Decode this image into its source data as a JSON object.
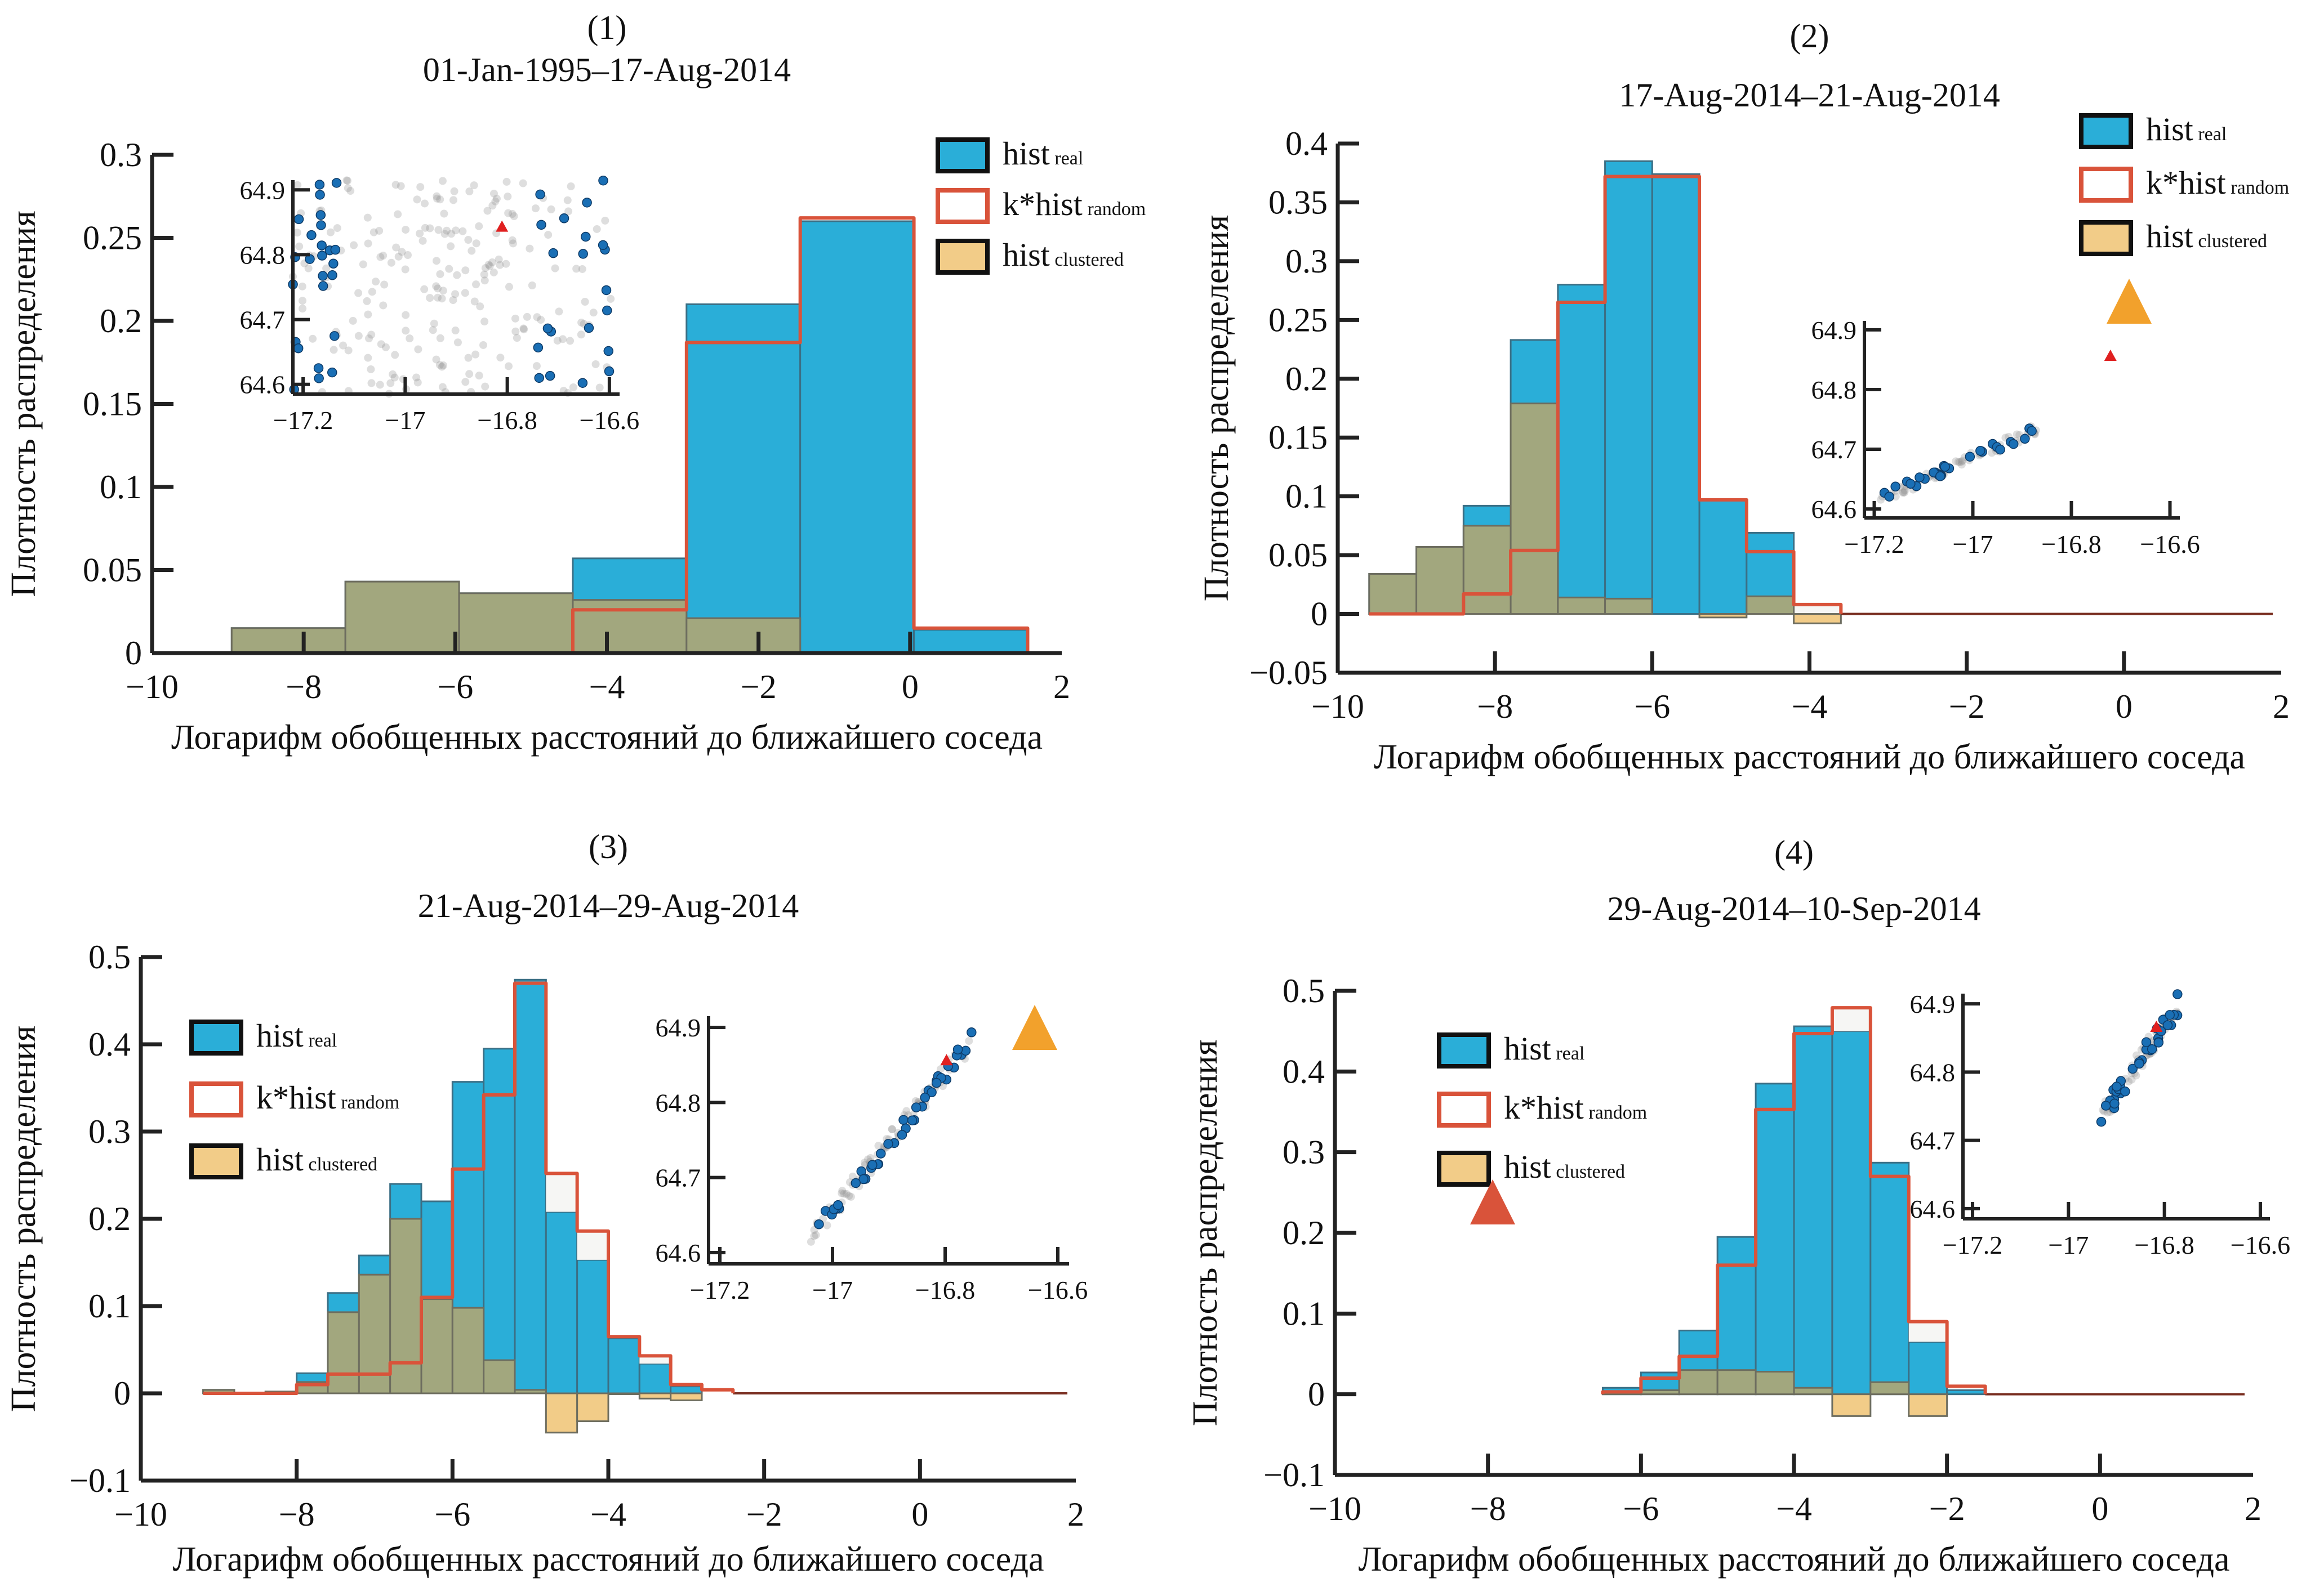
{
  "colors": {
    "real": "#2aaed8",
    "random_line": "#d9533a",
    "clustered": "#f2cc88",
    "overlap": "#a2a77e",
    "axis": "#222222",
    "orange_marker": "#f2a12c",
    "red_marker": "#d9533a",
    "inset_point": "#1a6fb5",
    "inset_event": "#e02020"
  },
  "legend": {
    "real": {
      "main": "hist",
      "sub": "real"
    },
    "random": {
      "main": "k*hist",
      "sub": "random"
    },
    "clustered": {
      "main": "hist",
      "sub": "clustered"
    }
  },
  "chart_data": [
    {
      "type": "bar",
      "panel_label": "(1)",
      "title": "01-Jan-1995–17-Aug-2014",
      "xlabel": "Логарифм обобщенных расстояний до ближайшего соседа",
      "ylabel": "Плотность распределения",
      "xlim": [
        -10,
        2
      ],
      "ylim": [
        0,
        0.3
      ],
      "xticks": [
        -10,
        -8,
        -6,
        -4,
        -2,
        0,
        2
      ],
      "xtick_labels": [
        "−10",
        "−8",
        "−6",
        "−4",
        "−2",
        "0",
        "2"
      ],
      "yticks": [
        0,
        0.05,
        0.1,
        0.15,
        0.2,
        0.25,
        0.3
      ],
      "ytick_labels": [
        "0",
        "0.05",
        "0.1",
        "0.15",
        "0.2",
        "0.25",
        "0.3"
      ],
      "legend_position": "top-right",
      "bin_edges": [
        -8.95,
        -7.45,
        -5.95,
        -4.45,
        -2.95,
        -1.45,
        0.05,
        1.55
      ],
      "series": [
        {
          "name": "hist real",
          "values": [
            0.015,
            0.043,
            0.036,
            0.057,
            0.21,
            0.26,
            0.014
          ]
        },
        {
          "name": "k*hist random",
          "values": [
            0,
            0,
            0,
            0.026,
            0.187,
            0.262,
            0.015
          ]
        },
        {
          "name": "hist clustered",
          "values": [
            0.015,
            0.043,
            0.036,
            0.032,
            0.021,
            0,
            0
          ]
        }
      ],
      "inset": {
        "xticks": [
          "−17.2",
          "−17",
          "−16.8",
          "−16.6"
        ],
        "yticks": [
          "64.6",
          "64.7",
          "64.8",
          "64.9"
        ],
        "pattern": "scattered"
      }
    },
    {
      "type": "bar",
      "panel_label": "(2)",
      "title": "17-Aug-2014–21-Aug-2014",
      "xlabel": "Логарифм обобщенных расстояний до ближайшего соседа",
      "ylabel": "Плотность распределения",
      "xlim": [
        -10,
        2
      ],
      "ylim": [
        -0.05,
        0.4
      ],
      "xticks": [
        -10,
        -8,
        -6,
        -4,
        -2,
        0,
        2
      ],
      "xtick_labels": [
        "−10",
        "−8",
        "−6",
        "−4",
        "−2",
        "0",
        "2"
      ],
      "yticks": [
        -0.05,
        0,
        0.05,
        0.1,
        0.15,
        0.2,
        0.25,
        0.3,
        0.35,
        0.4
      ],
      "ytick_labels": [
        "−0.05",
        "0",
        "0.05",
        "0.1",
        "0.15",
        "0.2",
        "0.25",
        "0.3",
        "0.35",
        "0.4"
      ],
      "legend_position": "top-right",
      "bin_edges": [
        -9.6,
        -9.0,
        -8.4,
        -7.8,
        -7.2,
        -6.6,
        -6.0,
        -5.4,
        -4.8,
        -4.2,
        -3.6
      ],
      "series": [
        {
          "name": "hist real",
          "values": [
            0.034,
            0.057,
            0.092,
            0.233,
            0.28,
            0.385,
            0.374,
            0.097,
            0.069,
            0.0
          ]
        },
        {
          "name": "k*hist random",
          "values": [
            0,
            0,
            0.017,
            0.054,
            0.265,
            0.372,
            0.372,
            0.097,
            0.053,
            0.008
          ]
        },
        {
          "name": "hist clustered",
          "values": [
            0.034,
            0.057,
            0.075,
            0.179,
            0.014,
            0.013,
            0.0,
            -0.003,
            0.015,
            -0.008
          ]
        }
      ],
      "inset": {
        "xticks": [
          "−17.2",
          "−17",
          "−16.8",
          "−16.6"
        ],
        "yticks": [
          "64.6",
          "64.7",
          "64.8",
          "64.9"
        ],
        "pattern": "linear"
      }
    },
    {
      "type": "bar",
      "panel_label": "(3)",
      "title": "21-Aug-2014–29-Aug-2014",
      "xlabel": "Логарифм обобщенных расстояний до ближайшего соседа",
      "ylabel": "Плотность распределения",
      "xlim": [
        -10,
        2
      ],
      "ylim": [
        -0.1,
        0.5
      ],
      "xticks": [
        -10,
        -8,
        -6,
        -4,
        -2,
        0,
        2
      ],
      "xtick_labels": [
        "−10",
        "−8",
        "−6",
        "−4",
        "−2",
        "0",
        "2"
      ],
      "yticks": [
        -0.1,
        0,
        0.1,
        0.2,
        0.3,
        0.4,
        0.5
      ],
      "ytick_labels": [
        "−0.1",
        "0",
        "0.1",
        "0.2",
        "0.3",
        "0.4",
        "0.5"
      ],
      "legend_position": "top-left",
      "bin_edges": [
        -9.2,
        -8.8,
        -8.4,
        -8.0,
        -7.6,
        -7.2,
        -6.8,
        -6.4,
        -6.0,
        -5.6,
        -5.2,
        -4.8,
        -4.4,
        -4.0,
        -3.6,
        -3.2,
        -2.8,
        -2.4
      ],
      "series": [
        {
          "name": "hist real",
          "values": [
            0.004,
            0.0,
            0.002,
            0.023,
            0.115,
            0.158,
            0.24,
            0.22,
            0.357,
            0.395,
            0.474,
            0.208,
            0.153,
            0.063,
            0.034,
            0.008,
            0.0
          ]
        },
        {
          "name": "k*hist random",
          "values": [
            0,
            0,
            0,
            0.01,
            0.022,
            0.022,
            0.035,
            0.11,
            0.257,
            0.342,
            0.47,
            0.252,
            0.186,
            0.065,
            0.043,
            0.01,
            0.004
          ]
        },
        {
          "name": "hist clustered",
          "values": [
            0.004,
            0.0,
            0.002,
            0.013,
            0.093,
            0.136,
            0.2,
            0.108,
            0.098,
            0.038,
            0.004,
            -0.045,
            -0.032,
            -0.001,
            -0.006,
            -0.008,
            0.0
          ]
        }
      ],
      "inset": {
        "xticks": [
          "−17.2",
          "−17",
          "−16.8",
          "−16.6"
        ],
        "yticks": [
          "64.6",
          "64.7",
          "64.8",
          "64.9"
        ],
        "pattern": "diagonal-steep"
      }
    },
    {
      "type": "bar",
      "panel_label": "(4)",
      "title": "29-Aug-2014–10-Sep-2014",
      "xlabel": "Логарифм обобщенных расстояний до ближайшего соседа",
      "ylabel": "Плотность распределения",
      "xlim": [
        -10,
        2
      ],
      "ylim": [
        -0.1,
        0.5
      ],
      "xticks": [
        -10,
        -8,
        -6,
        -4,
        -2,
        0,
        2
      ],
      "xtick_labels": [
        "−10",
        "−8",
        "−6",
        "−4",
        "−2",
        "0",
        "2"
      ],
      "yticks": [
        -0.1,
        0,
        0.1,
        0.2,
        0.3,
        0.4,
        0.5
      ],
      "ytick_labels": [
        "−0.1",
        "0",
        "0.1",
        "0.2",
        "0.3",
        "0.4",
        "0.5"
      ],
      "legend_position": "top-left",
      "bin_edges": [
        -6.5,
        -6.0,
        -5.5,
        -5.0,
        -4.5,
        -4.0,
        -3.5,
        -3.0,
        -2.5,
        -2.0,
        -1.5
      ],
      "series": [
        {
          "name": "hist real",
          "values": [
            0.008,
            0.027,
            0.079,
            0.195,
            0.385,
            0.456,
            0.45,
            0.287,
            0.065,
            0.005
          ]
        },
        {
          "name": "k*hist random",
          "values": [
            0.003,
            0.02,
            0.047,
            0.16,
            0.353,
            0.447,
            0.479,
            0.27,
            0.09,
            0.01
          ]
        },
        {
          "name": "hist clustered",
          "values": [
            0.003,
            0.005,
            0.03,
            0.03,
            0.028,
            0.008,
            -0.027,
            0.015,
            -0.027,
            0.0
          ]
        }
      ],
      "inset": {
        "xticks": [
          "−17.2",
          "−17",
          "−16.8",
          "−16.6"
        ],
        "yticks": [
          "64.6",
          "64.7",
          "64.8",
          "64.9"
        ],
        "pattern": "cluster"
      }
    }
  ]
}
